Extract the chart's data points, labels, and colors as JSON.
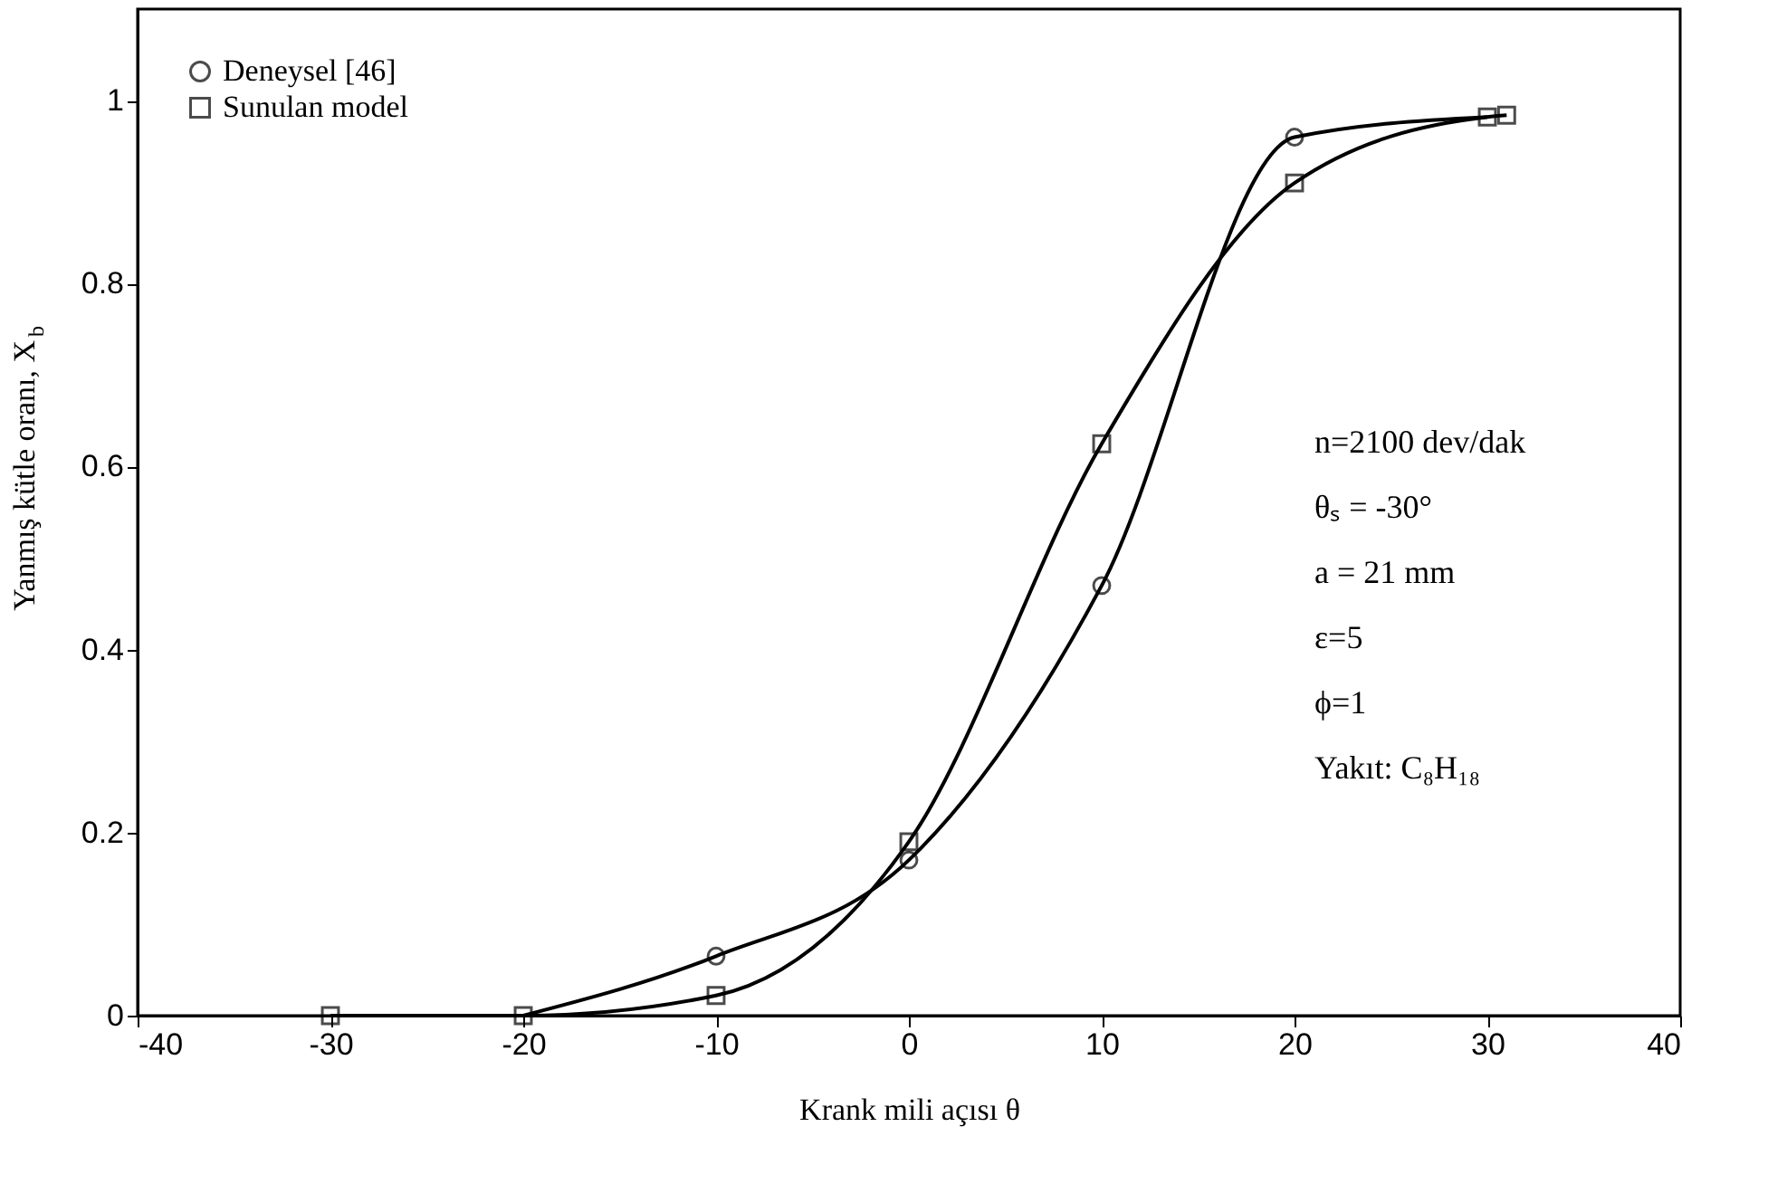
{
  "chart_data": {
    "type": "line",
    "xlabel": "Krank mili açısı θ",
    "ylabel": "Yanmış kütle oranı, X$_{b}$",
    "xlim": [
      -40,
      40
    ],
    "xticks": [
      -40,
      -30,
      -20,
      -10,
      0,
      10,
      20,
      30,
      40
    ],
    "ylim": [
      0,
      1.1
    ],
    "yticks": [
      0,
      0.2,
      0.4,
      0.6,
      0.8,
      1
    ],
    "grid": false,
    "legend": "top left",
    "line_style": "solid",
    "series": [
      {
        "name": "Deneysel [46]",
        "type": "scatter",
        "color": "#000000",
        "marker": "circle",
        "x": [
          -10,
          0,
          10,
          20
        ],
        "values": [
          0.065,
          0.17,
          0.47,
          0.96
        ]
      },
      {
        "color": "#000000",
        "marker": "none",
        "x": [
          -20,
          -10,
          0,
          10,
          20,
          30
        ],
        "values": [
          0,
          0.065,
          0.17,
          0.47,
          0.96,
          0.982
        ]
      },
      {
        "name": "Sunulan model",
        "color": "#000000",
        "marker": "square",
        "x": [
          -30,
          -20,
          -10,
          0,
          10,
          20,
          30,
          31
        ],
        "values": [
          0,
          0,
          0.022,
          0.19,
          0.625,
          0.91,
          0.982,
          0.984
        ]
      }
    ],
    "annotations": [
      "n=2100 dev/dak",
      "θₛ = -30°",
      "a = 21 mm",
      "ε=5",
      "ϕ=1",
      "Yakıt: C₈H₁₈"
    ]
  }
}
